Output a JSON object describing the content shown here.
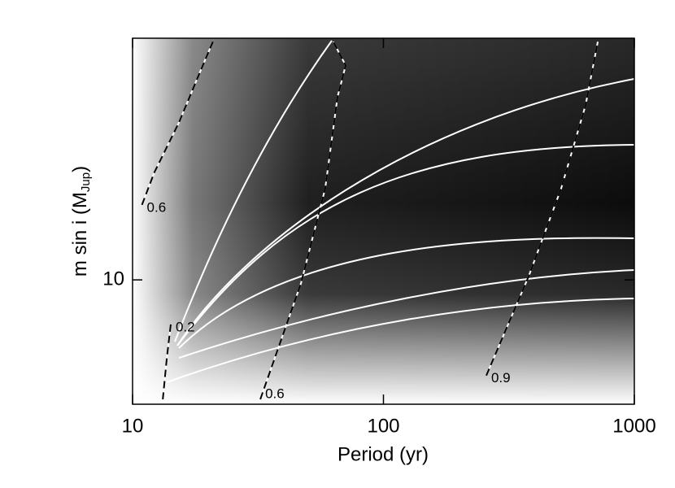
{
  "chart_data": {
    "type": "contour",
    "xlabel": "Period (yr)",
    "ylabel_parts": [
      "m sin i (M",
      "Jup",
      ")"
    ],
    "xlim": [
      10,
      1000
    ],
    "xticks": [
      10,
      100,
      1000
    ],
    "xlog": true,
    "ylim": [
      7,
      20
    ],
    "yticks": [
      10
    ],
    "ylog": true,
    "contours": [
      {
        "label": "0.6",
        "x": [
          10.9,
          12.2,
          15.3,
          18.5,
          20.9
        ],
        "y": [
          12.4,
          13.6,
          15.7,
          18.1,
          19.8
        ]
      },
      {
        "label": "0.2",
        "x": [
          14.2,
          13.7,
          13.2
        ],
        "y": [
          8.8,
          8.0,
          7.1
        ]
      },
      {
        "label": "0.6",
        "x": [
          32.3,
          46.9,
          58.6,
          65.6,
          70.7,
          63.1
        ],
        "y": [
          7.1,
          9.9,
          13.0,
          16.9,
          18.5,
          19.8
        ]
      },
      {
        "label": "0.9",
        "x": [
          257,
          379,
          511,
          639,
          715
        ],
        "y": [
          7.6,
          10.1,
          13.0,
          16.5,
          19.8
        ]
      }
    ]
  }
}
